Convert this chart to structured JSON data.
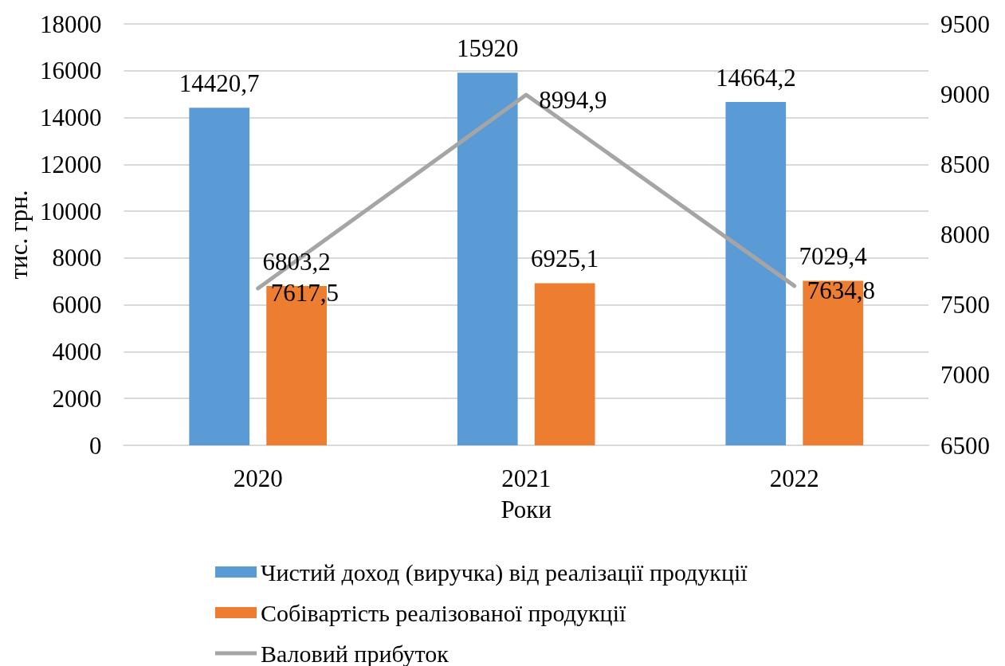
{
  "chart_data": {
    "type": "bar",
    "categories": [
      "2020",
      "2021",
      "2022"
    ],
    "xlabel": "Роки",
    "ylabel": "тис. грн.",
    "series": [
      {
        "name": "Чистий доход (виручка) від реалізації продукції",
        "color": "#5b9bd5",
        "values": [
          14420.7,
          15920,
          14664.2
        ],
        "value_labels": [
          "14420,7",
          "15920",
          "14664,2"
        ]
      },
      {
        "name": "Собівартість реалізованої продукції",
        "color": "#ed7d31",
        "values": [
          6803.2,
          6925.1,
          7029.4
        ],
        "value_labels": [
          "6803,2",
          "6925,1",
          "7029,4"
        ]
      },
      {
        "name": "Валовий прибуток",
        "type": "line",
        "axis": "y2",
        "color": "#a5a5a5",
        "values": [
          7617.5,
          8994.9,
          7634.8
        ],
        "value_labels": [
          "7617,5",
          "8994,9",
          "7634,8"
        ]
      }
    ],
    "ylim": [
      0,
      18000
    ],
    "yticks": [
      0,
      2000,
      4000,
      6000,
      8000,
      10000,
      12000,
      14000,
      16000,
      18000
    ],
    "y2lim": [
      6500,
      9500
    ],
    "y2ticks": [
      6500,
      7000,
      7500,
      8000,
      8500,
      9000,
      9500
    ],
    "grid": "y",
    "legend": "bottom",
    "marker": "none"
  }
}
